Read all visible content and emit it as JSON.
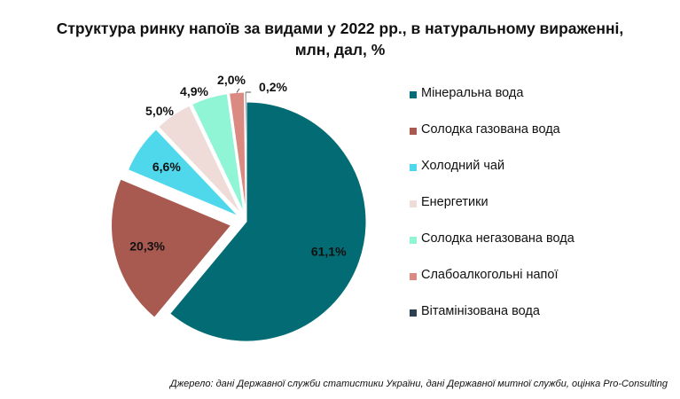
{
  "title": {
    "line1": "Структура ринку напоїв за видами у 2022 рр., в натуральному вираженні,",
    "line2": "млн, дал, %"
  },
  "source": "Джерело: дані Державної служби статистики України, дані Державної митної служби, оцінка Pro-Consulting",
  "chart_data": {
    "type": "pie",
    "title": "Структура ринку напоїв за видами у 2022 рр., в натуральному вираженні, млн, дал, %",
    "legend_position": "right",
    "unit": "%",
    "slices": [
      {
        "name": "Мінеральна вода",
        "value": 61.1,
        "label": "61,1%",
        "color": "#036b73"
      },
      {
        "name": "Солодка газована вода",
        "value": 20.3,
        "label": "20,3%",
        "color": "#a95a50"
      },
      {
        "name": "Холодний чай",
        "value": 6.6,
        "label": "6,6%",
        "color": "#4fd8ec"
      },
      {
        "name": "Енергетики",
        "value": 5.0,
        "label": "5,0%",
        "color": "#efdcd8"
      },
      {
        "name": "Солодка негазована вода",
        "value": 4.9,
        "label": "4,9%",
        "color": "#8ff5d5"
      },
      {
        "name": "Слабоалкогольні напої",
        "value": 2.0,
        "label": "2,0%",
        "color": "#da8a80"
      },
      {
        "name": "Вітамінізована вода",
        "value": 0.2,
        "label": "0,2%",
        "color": "#2d3e50"
      }
    ]
  }
}
